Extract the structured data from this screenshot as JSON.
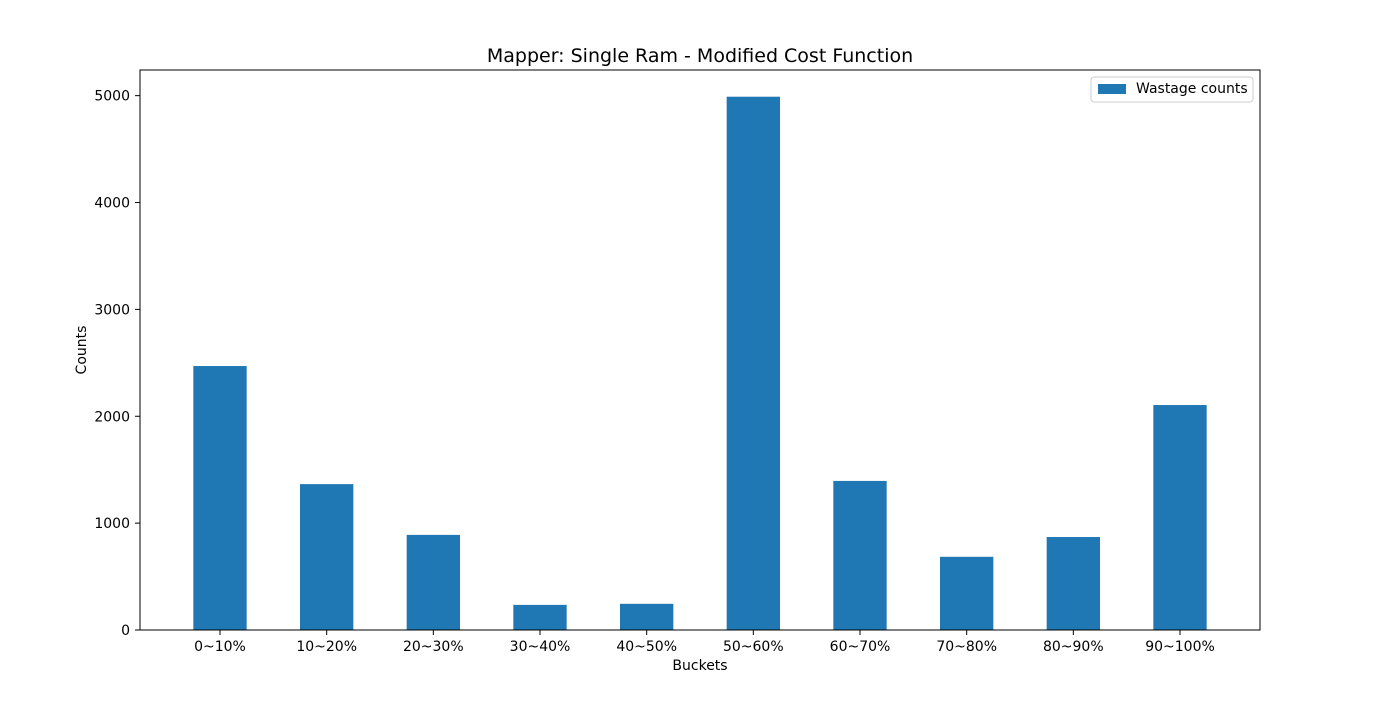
{
  "chart_data": {
    "type": "bar",
    "title": "Mapper: Single Ram - Modified Cost Function",
    "xlabel": "Buckets",
    "ylabel": "Counts",
    "categories": [
      "0~10%",
      "10~20%",
      "20~30%",
      "30~40%",
      "40~50%",
      "50~60%",
      "60~70%",
      "70~80%",
      "80~90%",
      "90~100%"
    ],
    "series": [
      {
        "name": "Wastage counts",
        "values": [
          2470,
          1365,
          890,
          235,
          245,
          4990,
          1395,
          685,
          870,
          2105
        ],
        "color": "#1f77b4"
      }
    ],
    "ylim": [
      0,
      5240
    ],
    "yticks": [
      0,
      1000,
      2000,
      3000,
      4000,
      5000
    ],
    "grid": false,
    "legend_position": "top-right"
  }
}
